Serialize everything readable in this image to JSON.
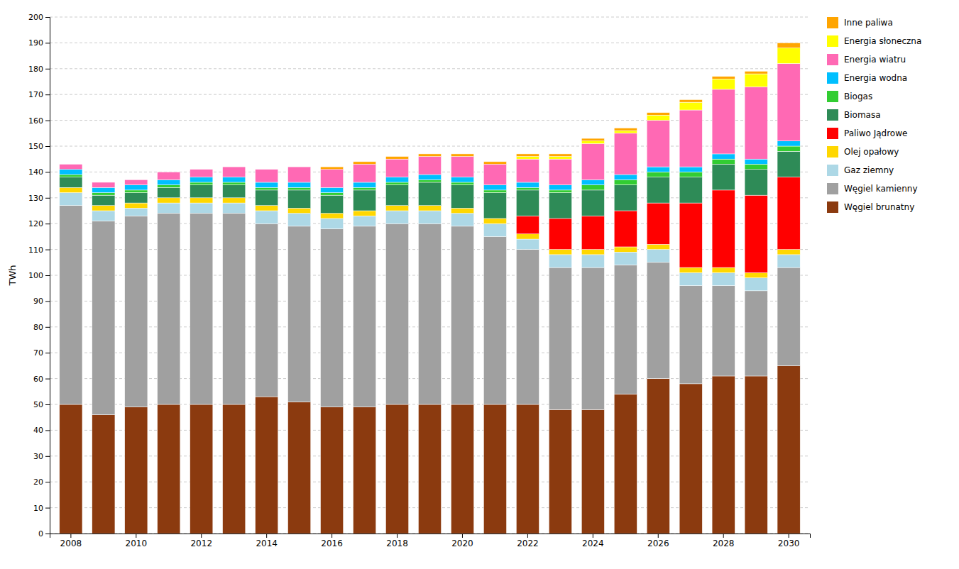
{
  "chart_data": {
    "type": "bar",
    "stacked": true,
    "y_label": "TWh",
    "categories": [
      "2008",
      null,
      "2010",
      null,
      "2012",
      null,
      "2014",
      null,
      "2016",
      null,
      "2018",
      null,
      "2020",
      null,
      "2022",
      null,
      "2024",
      null,
      "2026",
      null,
      "2028",
      null,
      "2030"
    ],
    "series": [
      {
        "name": "Węgiel brunatny",
        "color": "#8B3A0F",
        "values": [
          50,
          46,
          49,
          50,
          50,
          50,
          53,
          51,
          49,
          49,
          50,
          50,
          50,
          50,
          50,
          48,
          48,
          54,
          60,
          58,
          61,
          61,
          65
        ]
      },
      {
        "name": "Węgiel kamienny",
        "color": "#A0A0A0",
        "values": [
          77,
          75,
          74,
          74,
          74,
          74,
          67,
          68,
          69,
          70,
          70,
          70,
          69,
          65,
          60,
          55,
          55,
          50,
          45,
          38,
          35,
          33,
          38
        ]
      },
      {
        "name": "Gaz ziemny",
        "color": "#ADD8E6",
        "values": [
          5,
          4,
          3,
          4,
          4,
          4,
          5,
          5,
          4,
          4,
          5,
          5,
          5,
          5,
          4,
          5,
          5,
          5,
          5,
          5,
          5,
          5,
          5
        ]
      },
      {
        "name": "Olej opałowy",
        "color": "#FFD700",
        "values": [
          2,
          2,
          2,
          2,
          2,
          2,
          2,
          2,
          2,
          2,
          2,
          2,
          2,
          2,
          2,
          2,
          2,
          2,
          2,
          2,
          2,
          2,
          2
        ]
      },
      {
        "name": "Paliwo Jądrowe",
        "color": "#FF0000",
        "values": [
          0,
          0,
          0,
          0,
          0,
          0,
          0,
          0,
          0,
          0,
          0,
          0,
          0,
          0,
          7,
          12,
          13,
          14,
          16,
          25,
          30,
          30,
          28
        ]
      },
      {
        "name": "Biomasa",
        "color": "#2E8B57",
        "values": [
          4,
          4,
          4,
          4,
          5,
          5,
          6,
          7,
          7,
          8,
          8,
          9,
          9,
          10,
          10,
          10,
          10,
          10,
          10,
          10,
          10,
          10,
          10
        ]
      },
      {
        "name": "Biogas",
        "color": "#32CD32",
        "values": [
          1,
          1,
          1,
          1,
          1,
          1,
          1,
          1,
          1,
          1,
          1,
          1,
          1,
          1,
          1,
          1,
          2,
          2,
          2,
          2,
          2,
          2,
          2
        ]
      },
      {
        "name": "Energia wodna",
        "color": "#00BFFF",
        "values": [
          2,
          2,
          2,
          2,
          2,
          2,
          2,
          2,
          2,
          2,
          2,
          2,
          2,
          2,
          2,
          2,
          2,
          2,
          2,
          2,
          2,
          2,
          2
        ]
      },
      {
        "name": "Energia wiatru",
        "color": "#FF69B4",
        "values": [
          2,
          2,
          2,
          3,
          3,
          4,
          5,
          6,
          7,
          7,
          7,
          7,
          8,
          8,
          9,
          10,
          14,
          16,
          18,
          22,
          25,
          28,
          30
        ]
      },
      {
        "name": "Energia słoneczna",
        "color": "#FFFF00",
        "values": [
          0,
          0,
          0,
          0,
          0,
          0,
          0,
          0,
          0,
          0,
          0,
          0,
          0,
          0,
          1,
          1,
          1,
          1,
          2,
          3,
          4,
          5,
          6
        ]
      },
      {
        "name": "Inne paliwa",
        "color": "#FFA500",
        "values": [
          0,
          0,
          0,
          0,
          0,
          0,
          0,
          0,
          1,
          1,
          1,
          1,
          1,
          1,
          1,
          1,
          1,
          1,
          1,
          1,
          1,
          1,
          2
        ]
      }
    ],
    "ylim": [
      0,
      200
    ],
    "yticks": [
      0,
      10,
      20,
      30,
      40,
      50,
      60,
      70,
      80,
      90,
      100,
      110,
      120,
      130,
      140,
      150,
      160,
      170,
      180,
      190,
      200
    ],
    "grid": true,
    "legend": "right"
  }
}
